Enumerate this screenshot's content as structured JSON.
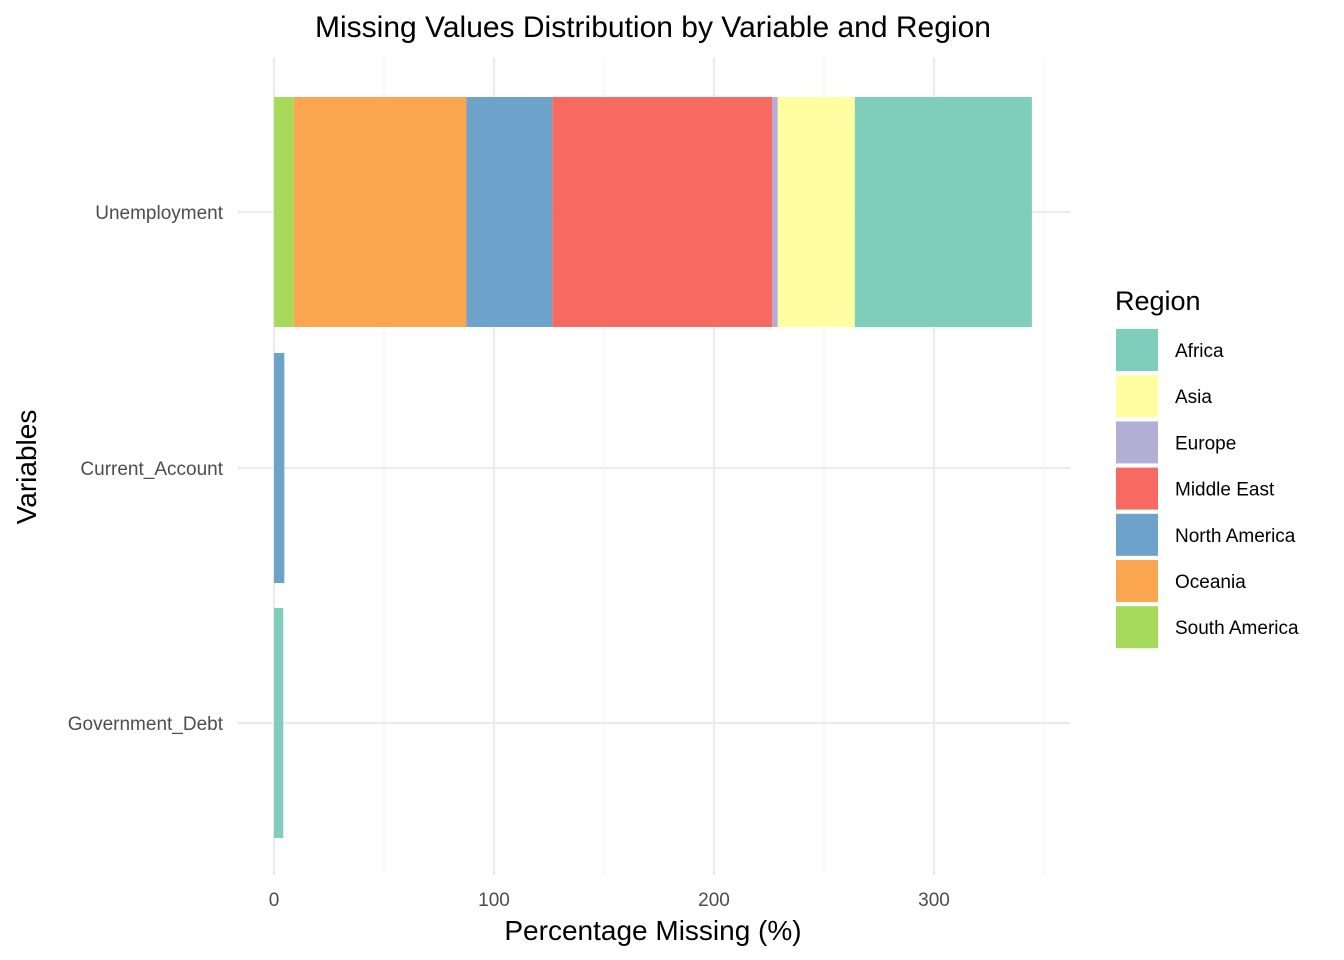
{
  "chart_data": {
    "type": "bar",
    "orientation": "horizontal",
    "stacked": true,
    "title": "Missing Values Distribution by Variable and Region",
    "xlabel": "Percentage Missing (%)",
    "ylabel": "Variables",
    "xlim": [
      0,
      360
    ],
    "xticks": [
      0,
      100,
      200,
      300
    ],
    "categories": [
      "Unemployment",
      "Current_Account",
      "Government_Debt"
    ],
    "legend_title": "Region",
    "legend_position": "right",
    "grid": true,
    "stack_order": [
      "South America",
      "Oceania",
      "North America",
      "Middle East",
      "Europe",
      "Asia",
      "Africa"
    ],
    "series": [
      {
        "name": "Africa",
        "color": "#7FCDBB",
        "values": [
          80.5,
          0,
          4.2
        ]
      },
      {
        "name": "Asia",
        "color": "#FFFFA1",
        "values": [
          35.0,
          0,
          0
        ]
      },
      {
        "name": "Europe",
        "color": "#B3AED4",
        "values": [
          2.5,
          0,
          0
        ]
      },
      {
        "name": "Middle East",
        "color": "#F76A61",
        "values": [
          100.0,
          0,
          0
        ]
      },
      {
        "name": "North America",
        "color": "#6DA2CB",
        "values": [
          39.0,
          4.7,
          0
        ]
      },
      {
        "name": "Oceania",
        "color": "#FAA650",
        "values": [
          78.5,
          0,
          0
        ]
      },
      {
        "name": "South America",
        "color": "#A6DA5B",
        "values": [
          9.0,
          0,
          0
        ]
      }
    ]
  }
}
